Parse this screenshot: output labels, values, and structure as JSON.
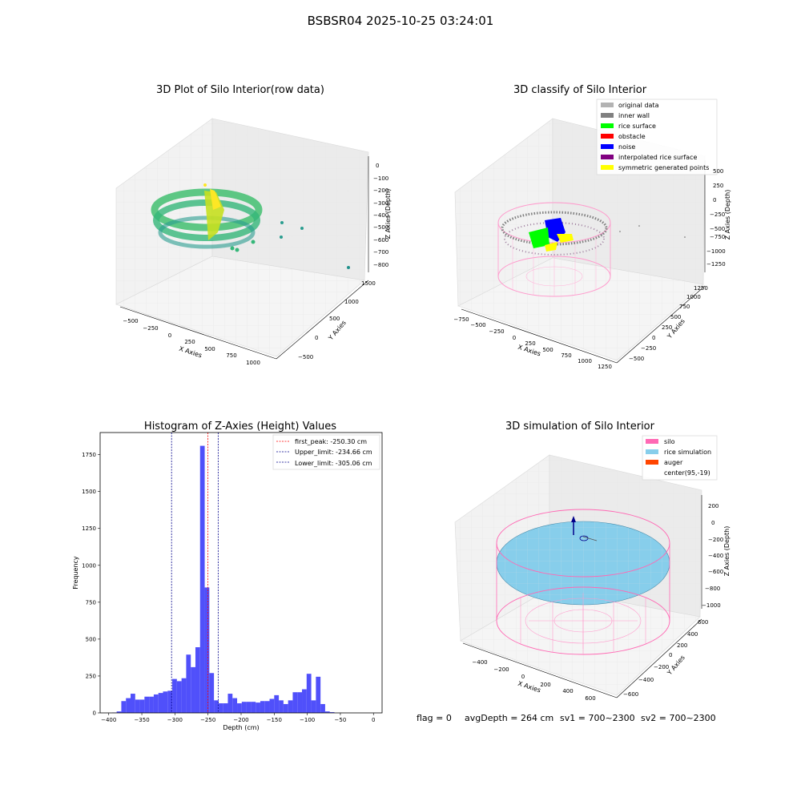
{
  "figure_title": "BSBSR04 2025-10-25 03:24:01",
  "footer": {
    "flag": "flag = 0",
    "avg_depth": "avgDepth = 264 cm",
    "sv1": "sv1 = 700~2300",
    "sv2": "sv2 = 700~2300"
  },
  "colors": {
    "histogram_bar": "#5050fa",
    "first_peak_line": "#ff0000",
    "limit_lines": "#00008b",
    "silo": "#ff69b4",
    "rice_simulation": "#87ceeb",
    "auger": "#ff4500",
    "original_data": "#b3b3b3",
    "inner_wall": "#808080",
    "rice_surface": "#00ff00",
    "obstacle": "#ff0000",
    "noise": "#0000ff",
    "interpolated_rice_surface": "#800080",
    "symmetric_generated_points": "#ffff00",
    "viridis_mid": "#35b779",
    "viridis_high": "#fde725"
  },
  "chart_data": [
    {
      "type": "scatter",
      "projection": "3d",
      "title": "3D Plot of Silo Interior(row data)",
      "xlabel": "X Axies",
      "ylabel": "Y Axies",
      "zlabel": "Z Axies (Depth)",
      "x_ticks": [
        "−500",
        "−250",
        "0",
        "250",
        "500",
        "750",
        "1000"
      ],
      "y_ticks": [
        "−500",
        "0",
        "500",
        "1000",
        "1500"
      ],
      "z_ticks": [
        "0",
        "−100",
        "−200",
        "−300",
        "−400",
        "−500",
        "−600",
        "−700",
        "−800"
      ],
      "colormap": "viridis"
    },
    {
      "type": "scatter",
      "projection": "3d",
      "title": "3D classify of Silo Interior",
      "xlabel": "X Axies",
      "ylabel": "Y Axies",
      "zlabel": "Z Axies (Depth)",
      "x_ticks": [
        "−750",
        "−500",
        "−250",
        "0",
        "250",
        "500",
        "750",
        "1000",
        "1250"
      ],
      "y_ticks": [
        "−500",
        "−250",
        "0",
        "250",
        "500",
        "750",
        "1000",
        "1250"
      ],
      "z_ticks": [
        "500",
        "250",
        "0",
        "−250",
        "−500",
        "−750",
        "−1000",
        "−1250"
      ],
      "legend": [
        "original data",
        "inner wall",
        "rice surface",
        "obstacle",
        "noise",
        "interpolated rice surface",
        "symmetric generated points"
      ],
      "legend_location": "top-right"
    },
    {
      "type": "bar",
      "title": "Histogram of Z-Axies (Height) Values",
      "xlabel": "Depth (cm)",
      "ylabel": "Frequency",
      "xlim": [
        -413,
        13
      ],
      "ylim": [
        0,
        1900
      ],
      "x_ticks": [
        -400,
        -350,
        -300,
        -250,
        -200,
        -150,
        -100,
        -50,
        0
      ],
      "y_ticks": [
        0,
        250,
        500,
        750,
        1000,
        1250,
        1500,
        1750
      ],
      "bin_width": 7,
      "bins": [
        [
          -395,
          2
        ],
        [
          -388,
          10
        ],
        [
          -381,
          80
        ],
        [
          -374,
          100
        ],
        [
          -367,
          130
        ],
        [
          -360,
          90
        ],
        [
          -353,
          90
        ],
        [
          -346,
          110
        ],
        [
          -339,
          110
        ],
        [
          -332,
          125
        ],
        [
          -325,
          135
        ],
        [
          -318,
          145
        ],
        [
          -311,
          150
        ],
        [
          -304,
          230
        ],
        [
          -297,
          215
        ],
        [
          -290,
          235
        ],
        [
          -283,
          395
        ],
        [
          -276,
          310
        ],
        [
          -269,
          445
        ],
        [
          -262,
          1810
        ],
        [
          -255,
          850
        ],
        [
          -248,
          270
        ],
        [
          -241,
          85
        ],
        [
          -234,
          65
        ],
        [
          -227,
          65
        ],
        [
          -220,
          130
        ],
        [
          -213,
          100
        ],
        [
          -206,
          65
        ],
        [
          -199,
          75
        ],
        [
          -192,
          75
        ],
        [
          -185,
          75
        ],
        [
          -178,
          70
        ],
        [
          -171,
          80
        ],
        [
          -164,
          80
        ],
        [
          -157,
          95
        ],
        [
          -150,
          120
        ],
        [
          -143,
          85
        ],
        [
          -136,
          60
        ],
        [
          -129,
          85
        ],
        [
          -122,
          140
        ],
        [
          -115,
          140
        ],
        [
          -108,
          160
        ],
        [
          -101,
          265
        ],
        [
          -94,
          85
        ],
        [
          -87,
          245
        ],
        [
          -80,
          60
        ],
        [
          -73,
          10
        ],
        [
          -66,
          5
        ]
      ],
      "vlines": [
        {
          "label": "first_peak: -250.30 cm",
          "x": -250.3,
          "color": "#ff0000"
        },
        {
          "label": "Upper_limit: -234.66 cm",
          "x": -234.66,
          "color": "#00008b"
        },
        {
          "label": "Lower_limit: -305.06 cm",
          "x": -305.06,
          "color": "#00008b"
        }
      ],
      "legend_location": "top-right"
    },
    {
      "type": "scatter",
      "projection": "3d",
      "title": "3D simulation of Silo Interior",
      "xlabel": "X Axies",
      "ylabel": "Y Axies",
      "zlabel": "Z Axies (Depth)",
      "x_ticks": [
        "−400",
        "−200",
        "0",
        "200",
        "400",
        "600"
      ],
      "y_ticks": [
        "−600",
        "−400",
        "−200",
        "0",
        "200",
        "400",
        "600"
      ],
      "z_ticks": [
        "200",
        "0",
        "−200",
        "−400",
        "−600",
        "−800",
        "−1000"
      ],
      "legend": [
        "silo",
        "rice simulation",
        "auger",
        "center(95,-19)"
      ],
      "legend_location": "top-right"
    }
  ]
}
